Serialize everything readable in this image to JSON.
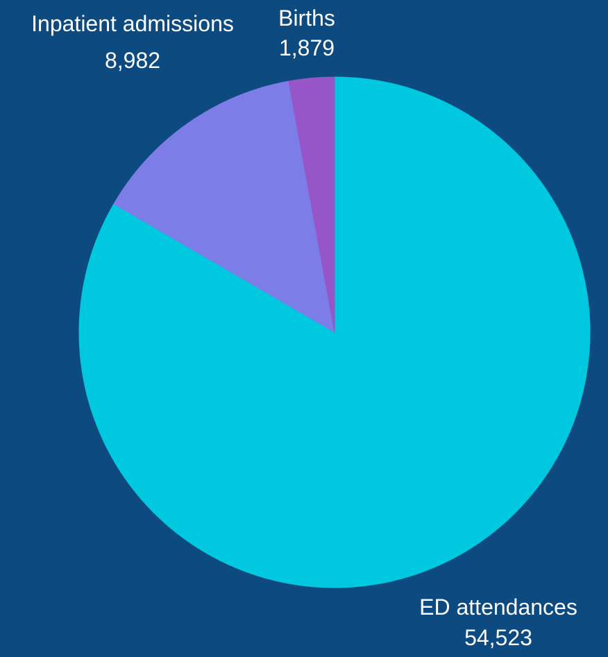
{
  "page": {
    "background": "#0c4a80"
  },
  "chart_data": {
    "type": "pie",
    "title": "",
    "start_angle_deg": 0,
    "direction": "clockwise",
    "slices": [
      {
        "label": "ED attendances",
        "value": 54523,
        "value_label": "54,523",
        "color": "#00c8de"
      },
      {
        "label": "Inpatient admissions",
        "value": 8982,
        "value_label": "8,982",
        "color": "#7d7de8"
      },
      {
        "label": "Births",
        "value": 1879,
        "value_label": "1,879",
        "color": "#9656c8"
      }
    ],
    "legend": "none",
    "label_position": "outside"
  }
}
